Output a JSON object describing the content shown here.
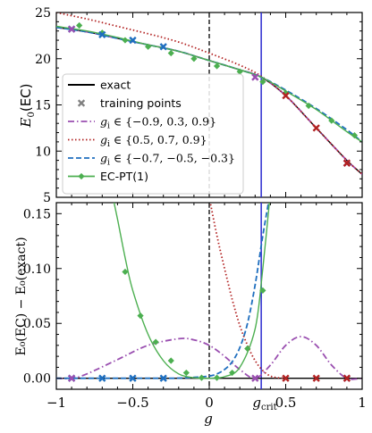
{
  "chart_data": [
    {
      "type": "line",
      "panel": "top",
      "ylabel": "E_0(EC)",
      "xlim": [
        -1,
        1
      ],
      "ylim": [
        5,
        25
      ],
      "yticks": [
        5,
        10,
        15,
        20,
        25
      ],
      "g_crit": 0.34,
      "legend_placement": "lower-left",
      "series": [
        {
          "name": "exact",
          "color": "#000000",
          "style": "solid",
          "x": [
            -1,
            -0.8,
            -0.6,
            -0.4,
            -0.2,
            0,
            0.2,
            0.34,
            0.5,
            0.7,
            0.9,
            1.0
          ],
          "y": [
            23.4,
            22.9,
            22.2,
            21.5,
            20.8,
            19.8,
            18.8,
            18.0,
            16.0,
            12.5,
            9.0,
            7.5
          ]
        },
        {
          "name": "g_i ∈ {−0.9, 0.3, 0.9}",
          "color": "#9a4fb0",
          "style": "dashdot",
          "x": [
            -1,
            -0.8,
            -0.6,
            -0.4,
            -0.2,
            0,
            0.2,
            0.34,
            0.5,
            0.7,
            0.9,
            1.0
          ],
          "y": [
            23.4,
            22.9,
            22.2,
            21.5,
            20.8,
            19.8,
            18.8,
            18.0,
            16.0,
            12.5,
            9.0,
            7.5
          ]
        },
        {
          "name": "g_i ∈ {0.5, 0.7, 0.9}",
          "color": "#b22222",
          "style": "dotted",
          "x": [
            -1,
            -0.8,
            -0.6,
            -0.4,
            -0.2,
            0,
            0.2,
            0.34,
            0.5,
            0.7,
            0.9,
            1.0
          ],
          "y": [
            25.0,
            24.3,
            23.5,
            22.7,
            21.8,
            20.6,
            19.3,
            18.1,
            16.0,
            12.5,
            9.0,
            7.5
          ]
        },
        {
          "name": "g_i ∈ {−0.7, −0.5, −0.3}",
          "color": "#1f6fbf",
          "style": "dashed",
          "x": [
            -1,
            -0.8,
            -0.6,
            -0.4,
            -0.2,
            0,
            0.2,
            0.34,
            0.5,
            0.7,
            0.9,
            1.0
          ],
          "y": [
            23.4,
            22.9,
            22.2,
            21.5,
            20.8,
            19.8,
            18.8,
            18.0,
            16.6,
            14.6,
            12.3,
            11.0
          ]
        },
        {
          "name": "EC-PT(1)",
          "color": "#4caf50",
          "style": "solid-diamond",
          "x": [
            -1,
            -0.8,
            -0.6,
            -0.4,
            -0.2,
            0,
            0.2,
            0.34,
            0.5,
            0.7,
            0.9,
            1.0
          ],
          "y": [
            23.5,
            23.0,
            22.3,
            21.5,
            20.8,
            19.8,
            18.8,
            18.0,
            16.5,
            14.5,
            12.1,
            11.0
          ]
        }
      ],
      "markers": {
        "ecpt_diamonds": {
          "x": [
            -0.85,
            -0.7,
            -0.55,
            -0.4,
            -0.25,
            -0.1,
            0.05,
            0.2,
            0.35,
            0.5,
            0.65,
            0.8,
            0.95
          ],
          "y": [
            23.6,
            22.8,
            22.0,
            21.3,
            20.6,
            20.0,
            19.2,
            18.6,
            17.5,
            16.3,
            14.9,
            13.3,
            11.7
          ]
        },
        "training_blue": {
          "x": [
            -0.9,
            -0.7,
            -0.5,
            -0.3
          ],
          "y": [
            23.2,
            22.6,
            22.0,
            21.3
          ]
        },
        "training_purple": {
          "x": [
            -0.9,
            0.3,
            0.9
          ],
          "y": [
            23.2,
            18.0,
            8.7
          ]
        },
        "training_red": {
          "x": [
            0.5,
            0.7,
            0.9
          ],
          "y": [
            16.0,
            12.5,
            8.7
          ]
        }
      }
    },
    {
      "type": "line",
      "panel": "bottom",
      "xlabel": "g",
      "ylabel": "E_0(EC) − E_0(exact)",
      "xlim": [
        -1,
        1
      ],
      "ylim": [
        -0.01,
        0.16
      ],
      "xticks": [
        -1,
        -0.5,
        0,
        0.5,
        1
      ],
      "xtick_labels": [
        "−1",
        "−0.5",
        "0",
        "0.5",
        "1"
      ],
      "yticks": [
        0.0,
        0.05,
        0.1,
        0.15
      ],
      "ytick_labels": [
        "0.00",
        "0.05",
        "0.10",
        "0.15"
      ],
      "g_crit_label": "g_crit",
      "series": [
        {
          "name": "g_i ∈ {−0.9, 0.3, 0.9}",
          "color": "#9a4fb0",
          "style": "dashdot",
          "x": [
            -1,
            -0.9,
            -0.8,
            -0.6,
            -0.4,
            -0.2,
            -0.1,
            0,
            0.1,
            0.2,
            0.3,
            0.4,
            0.5,
            0.6,
            0.7,
            0.8,
            0.9,
            1.0
          ],
          "y": [
            0.0,
            0.0,
            0.004,
            0.017,
            0.03,
            0.036,
            0.035,
            0.03,
            0.02,
            0.008,
            0.0,
            0.012,
            0.03,
            0.038,
            0.03,
            0.012,
            0.0,
            0.0
          ]
        },
        {
          "name": "g_i ∈ {0.5, 0.7, 0.9}",
          "color": "#b22222",
          "style": "dotted",
          "x": [
            0.0,
            0.05,
            0.1,
            0.15,
            0.2,
            0.25,
            0.3,
            0.35,
            0.4,
            0.45,
            0.5
          ],
          "y": [
            0.165,
            0.13,
            0.1,
            0.072,
            0.048,
            0.03,
            0.016,
            0.007,
            0.002,
            0.0005,
            0.0
          ]
        },
        {
          "name": "g_i ∈ {−0.7, −0.5, −0.3}",
          "color": "#1f6fbf",
          "style": "dashed",
          "x": [
            -1,
            -0.3,
            -0.2,
            -0.1,
            0,
            0.05,
            0.1,
            0.15,
            0.2,
            0.25,
            0.3,
            0.35,
            0.4
          ],
          "y": [
            0.0,
            0.0,
            0.0002,
            0.0008,
            0.002,
            0.004,
            0.008,
            0.015,
            0.028,
            0.05,
            0.085,
            0.13,
            0.17
          ]
        },
        {
          "name": "EC-PT(1)",
          "color": "#4caf50",
          "style": "solid-diamond",
          "x": [
            -0.63,
            -0.6,
            -0.55,
            -0.5,
            -0.4,
            -0.3,
            -0.2,
            -0.1,
            0,
            0.1,
            0.2,
            0.3,
            0.35,
            0.4
          ],
          "y": [
            0.165,
            0.145,
            0.11,
            0.08,
            0.04,
            0.016,
            0.004,
            0.0005,
            0.0,
            0.0015,
            0.01,
            0.045,
            0.1,
            0.17
          ]
        }
      ],
      "markers": {
        "ecpt_diamonds": {
          "x": [
            -0.55,
            -0.45,
            -0.35,
            -0.25,
            -0.15,
            -0.05,
            0.05,
            0.15,
            0.25,
            0.35
          ],
          "y": [
            0.097,
            0.057,
            0.033,
            0.016,
            0.005,
            0.0005,
            0.0005,
            0.005,
            0.027,
            0.08
          ]
        },
        "training_blue": {
          "x": [
            -0.9,
            -0.7,
            -0.5,
            -0.3
          ],
          "y": [
            0,
            0,
            0,
            0
          ]
        },
        "training_purple": {
          "x": [
            -0.9,
            0.3,
            0.9
          ],
          "y": [
            0,
            0,
            0
          ]
        },
        "training_red": {
          "x": [
            0.5,
            0.7,
            0.9
          ],
          "y": [
            0,
            0,
            0
          ]
        }
      }
    }
  ],
  "legend": {
    "entries": [
      {
        "label": "exact",
        "color": "#000000",
        "style": "solid",
        "math": false
      },
      {
        "label": "training points",
        "color": "#808080",
        "style": "marker-x",
        "math": false
      },
      {
        "label": "g",
        "sub": "i",
        "rest": " ∈ {−0.9, 0.3, 0.9}",
        "color": "#9a4fb0",
        "style": "dashdot",
        "math": true
      },
      {
        "label": "g",
        "sub": "i",
        "rest": " ∈ {0.5, 0.7, 0.9}",
        "color": "#b22222",
        "style": "dotted",
        "math": true
      },
      {
        "label": "g",
        "sub": "i",
        "rest": " ∈ {−0.7, −0.5, −0.3}",
        "color": "#1f6fbf",
        "style": "dashed",
        "math": true
      },
      {
        "label": "EC-PT(1)",
        "color": "#4caf50",
        "style": "solid-diamond",
        "math": false
      }
    ]
  },
  "axis_text": {
    "top_ylabel_main": "E",
    "top_ylabel_sub": "0",
    "top_ylabel_rest": "(EC)",
    "bottom_ylabel": "E₀(EC) − E₀(exact)",
    "xlabel": "g",
    "gcrit_main": "g",
    "gcrit_sub": "crit"
  }
}
